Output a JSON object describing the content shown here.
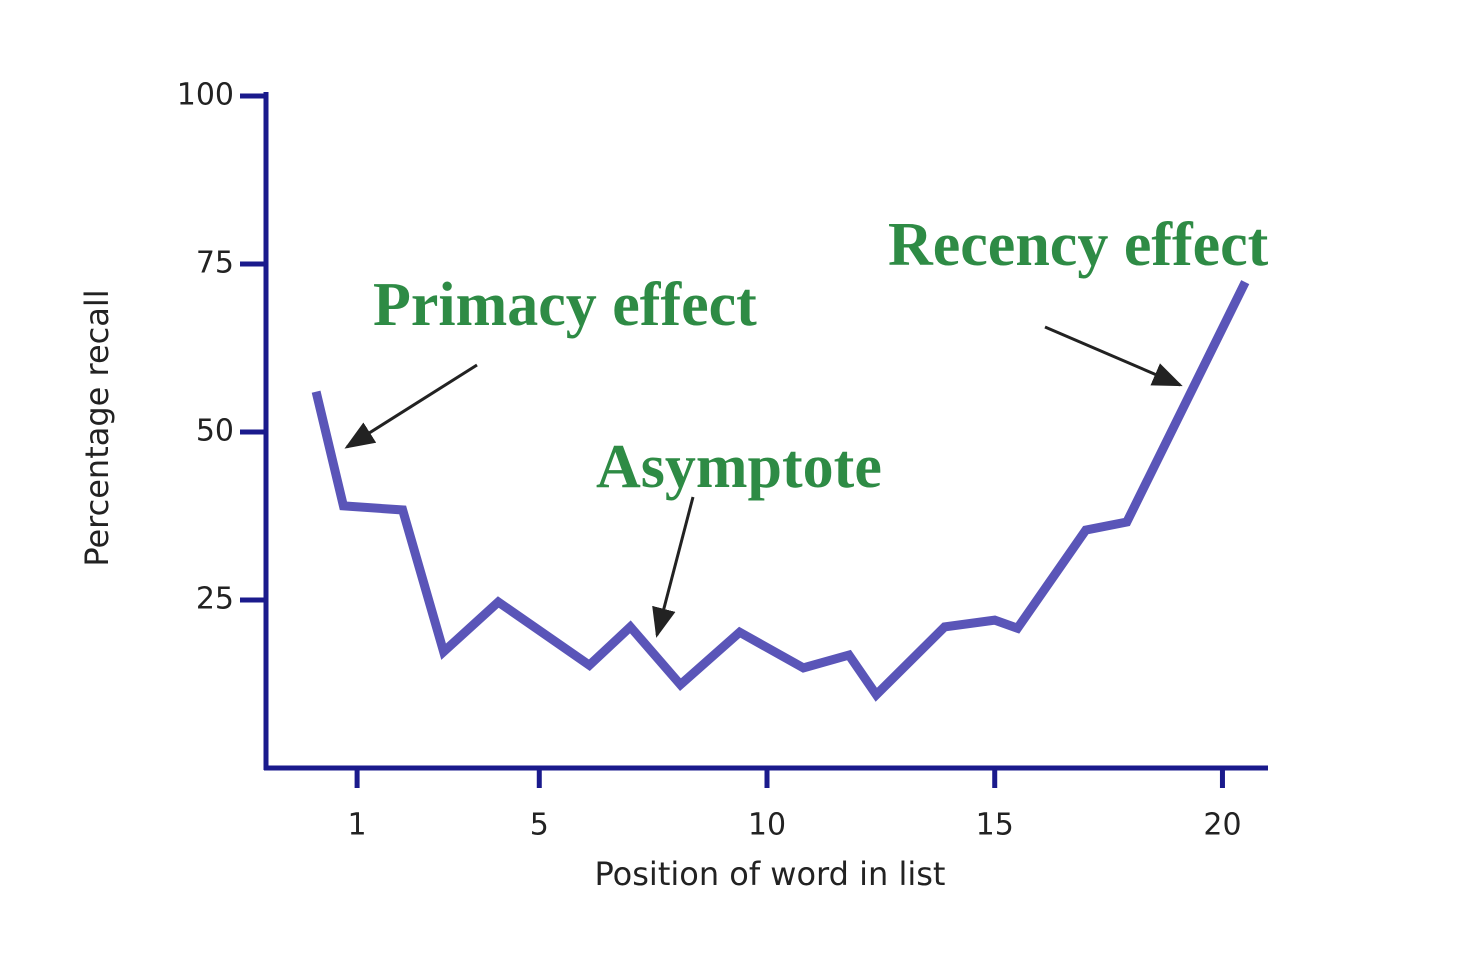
{
  "chart_data": {
    "type": "line",
    "x_label": "Position of word in list",
    "y_label": "Percentage recall",
    "x": [
      0.1,
      0.7,
      2.0,
      2.9,
      4.1,
      6.1,
      7.0,
      8.1,
      9.4,
      10.8,
      11.8,
      12.4,
      13.9,
      15.0,
      15.5,
      17.0,
      17.9,
      20.5
    ],
    "series": [
      {
        "color": "#5a55b8",
        "values": [
          56,
          39,
          38.4,
          17.3,
          24.7,
          15.3,
          21,
          12.4,
          20.2,
          14.9,
          16.8,
          10.9,
          21,
          22,
          20.8,
          35.4,
          36.6,
          72.3
        ]
      }
    ],
    "xlim": [
      -1,
      21
    ],
    "xticks": [
      1,
      5,
      10,
      15,
      20
    ],
    "ylim": [
      0,
      100
    ],
    "yticks": [
      25,
      50,
      75,
      100
    ],
    "annotations": [
      "Primacy effect",
      "Asymptote",
      "Recency effect"
    ]
  }
}
